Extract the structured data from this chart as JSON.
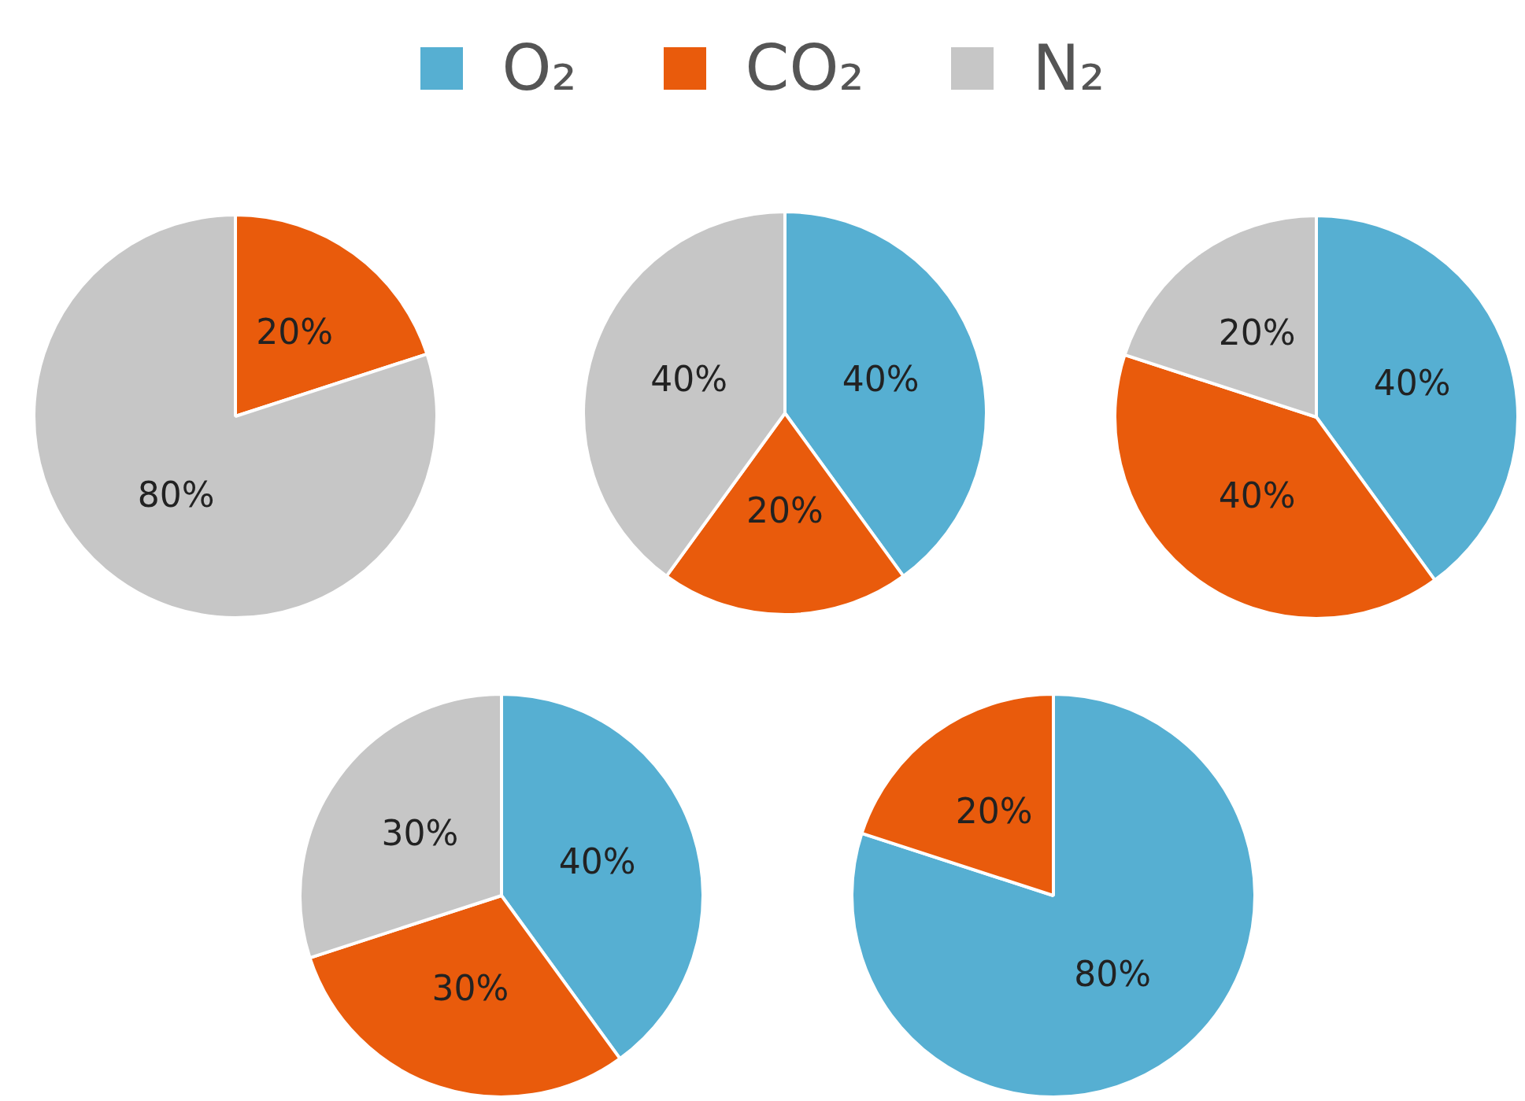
{
  "chart_data": [
    {
      "type": "pie",
      "categories": [
        "O₂",
        "CO₂",
        "N₂"
      ],
      "values": [
        0,
        20,
        80
      ],
      "colors": [
        "#56afd2",
        "#e95b0c",
        "#c6c6c6"
      ],
      "value_labels": [
        null,
        "20%",
        "80%"
      ],
      "legend": "top"
    },
    {
      "type": "pie",
      "categories": [
        null,
        null,
        null
      ],
      "values": [
        40,
        20,
        40
      ],
      "colors": [
        "#56afd2",
        "#e95b0c",
        "#c6c6c6"
      ],
      "value_labels": [
        "40%",
        "20%",
        "40%"
      ]
    },
    {
      "type": "pie",
      "categories": [
        null,
        null,
        null
      ],
      "values": [
        40,
        40,
        20
      ],
      "colors": [
        "#56afd2",
        "#e95b0c",
        "#c6c6c6"
      ],
      "value_labels": [
        "40%",
        "40%",
        "20%"
      ]
    },
    {
      "type": "pie",
      "categories": [
        null,
        null,
        null
      ],
      "values": [
        40,
        30,
        30
      ],
      "colors": [
        "#56afd2",
        "#e95b0c",
        "#c6c6c6"
      ],
      "value_labels": [
        "40%",
        "30%",
        "30%"
      ]
    },
    {
      "type": "pie",
      "categories": [
        null,
        null,
        null
      ],
      "values": [
        80,
        20,
        0
      ],
      "colors": [
        "#56afd2",
        "#e95b0c",
        "#c6c6c6"
      ],
      "value_labels": [
        "80%",
        "20%",
        null
      ]
    }
  ]
}
